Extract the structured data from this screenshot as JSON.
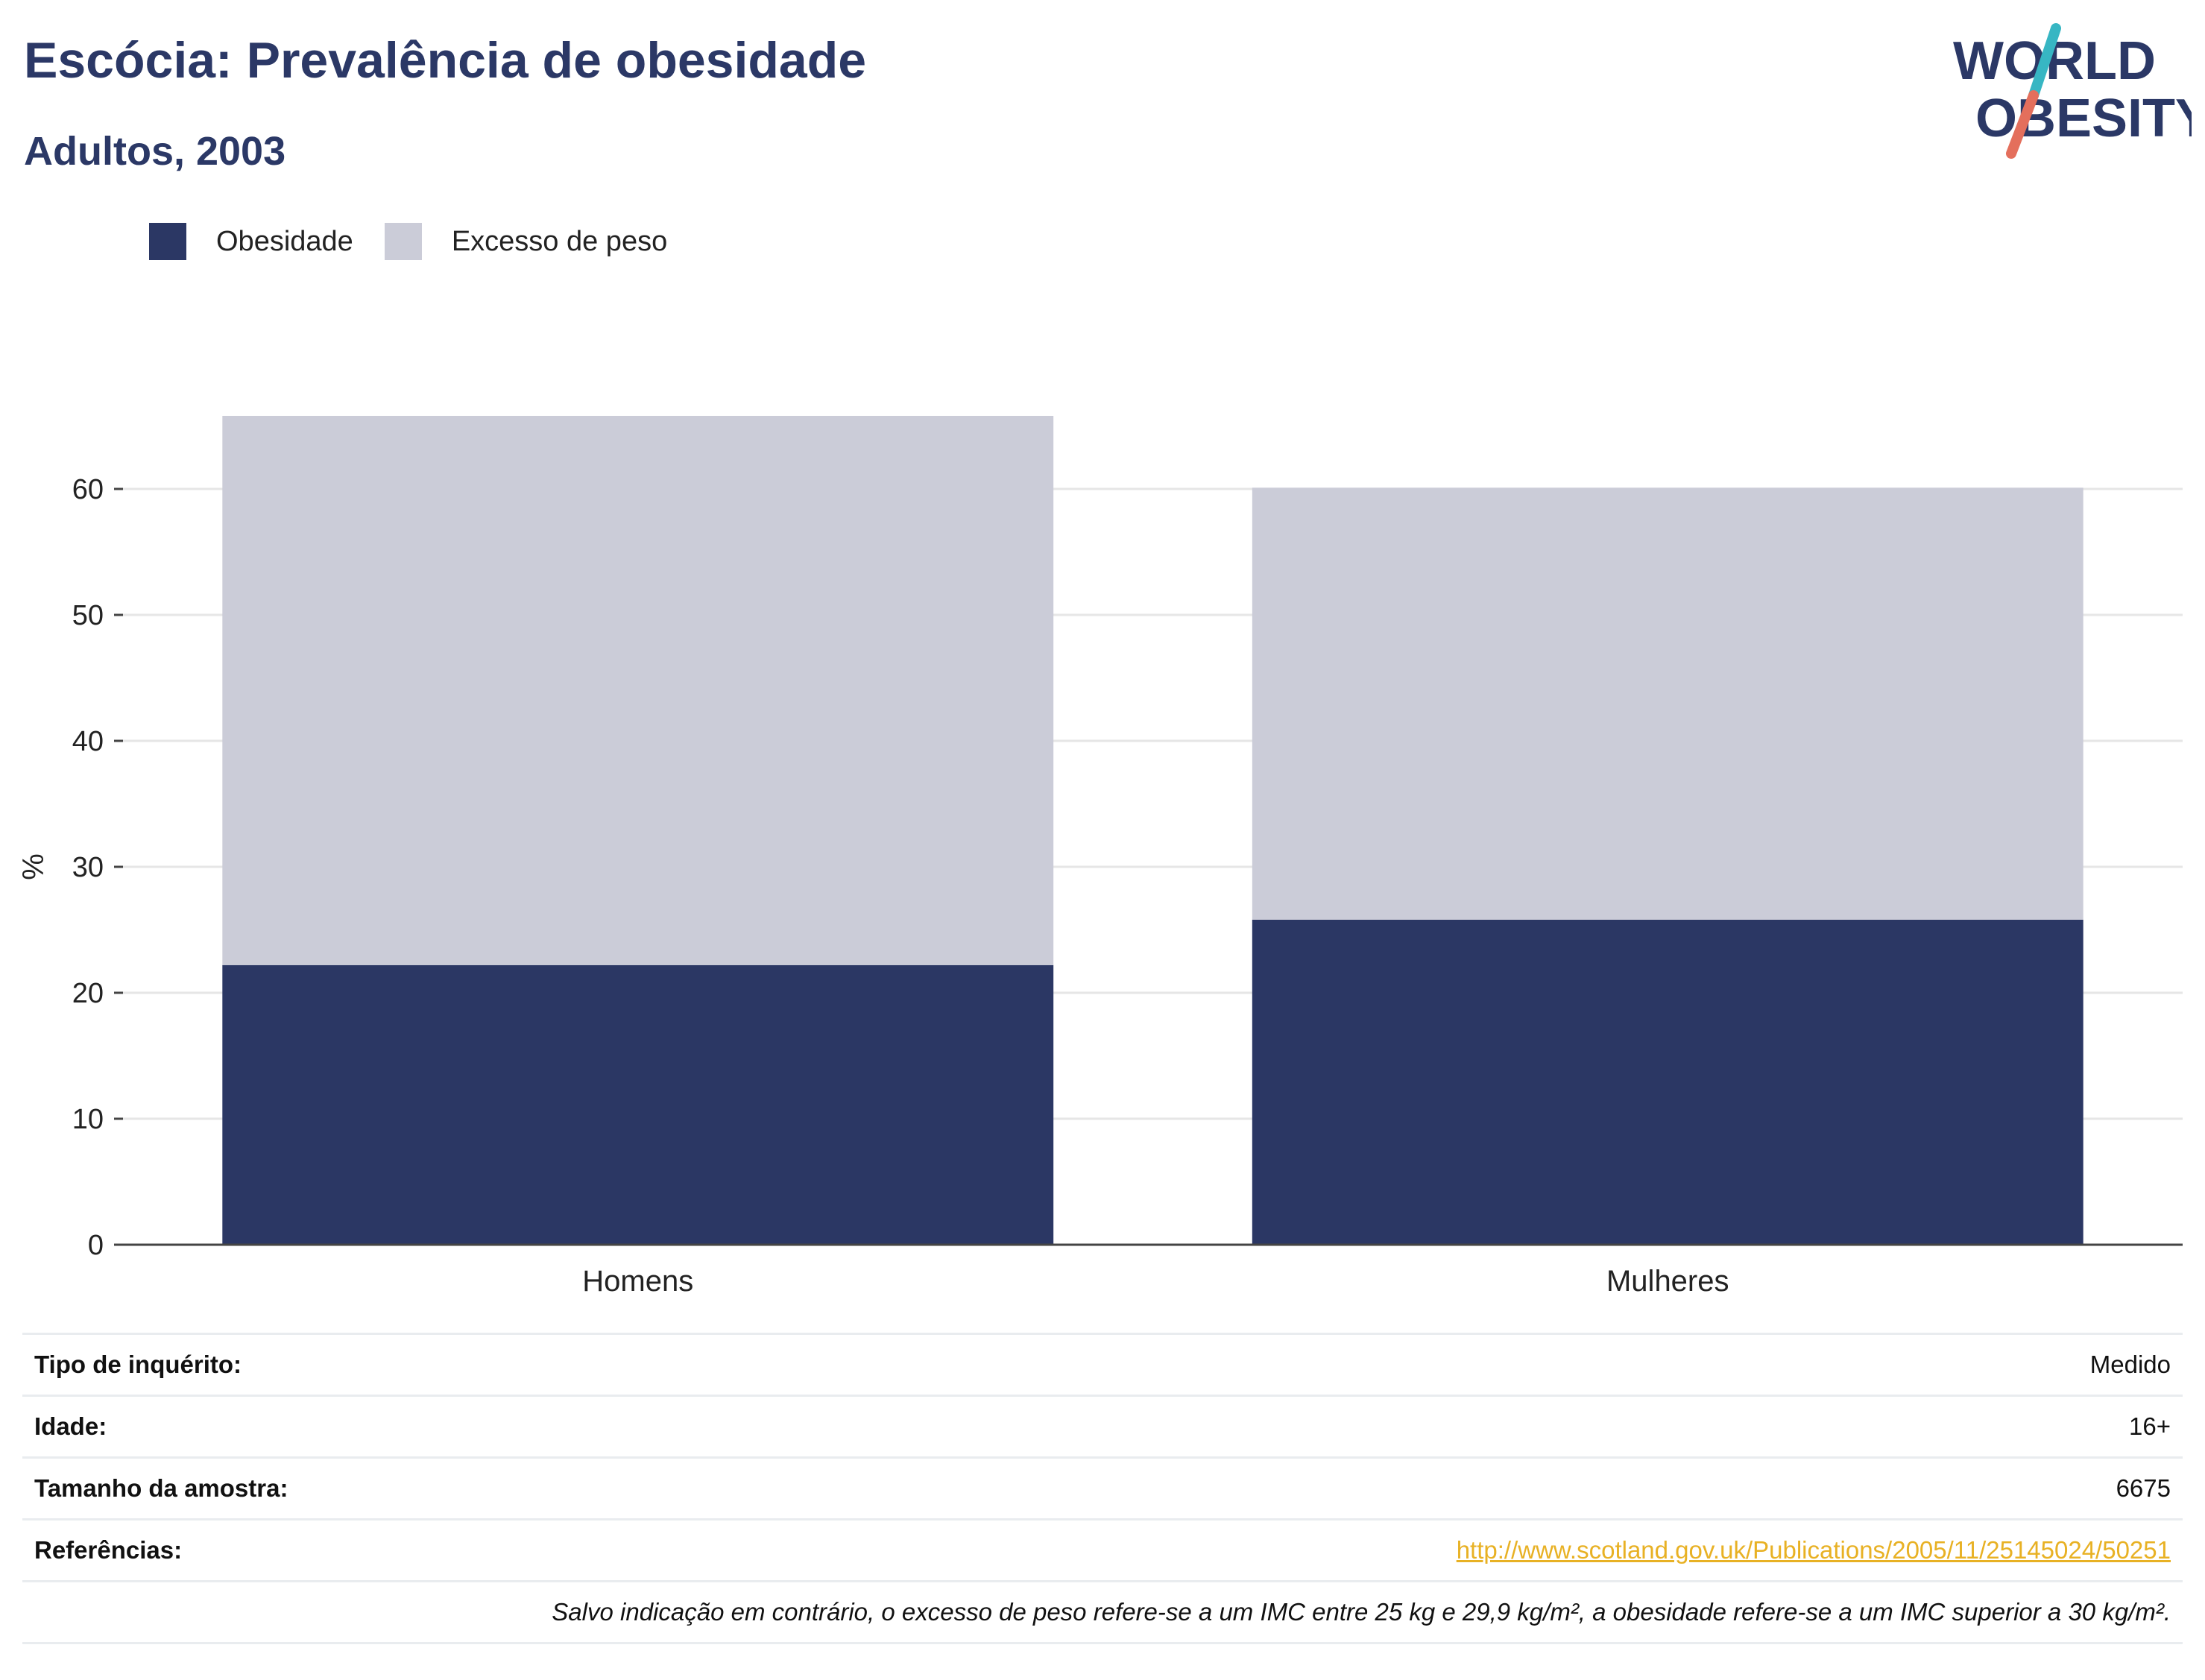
{
  "header": {
    "title": "Escócia: Prevalência de obesidade",
    "subtitle": "Adultos, 2003"
  },
  "logo": {
    "line1": "WORLD",
    "line2": "OBESITY",
    "colors": {
      "text": "#2b3866",
      "slash_top": "#37b6c3",
      "slash_bottom": "#e46f5c"
    }
  },
  "legend": [
    {
      "label": "Obesidade",
      "color": "#2b3764"
    },
    {
      "label": "Excesso de peso",
      "color": "#cbccd8"
    }
  ],
  "chart_data": {
    "type": "bar",
    "stacked": true,
    "categories": [
      "Homens",
      "Mulheres"
    ],
    "series": [
      {
        "name": "Obesidade",
        "values": [
          22.2,
          25.8
        ],
        "color": "#2b3764"
      },
      {
        "name": "Excesso de peso",
        "values": [
          43.6,
          34.3
        ],
        "color": "#cbccd8"
      }
    ],
    "ylabel": "%",
    "ylim": [
      0,
      70
    ],
    "yticks": [
      0,
      10,
      20,
      30,
      40,
      50,
      60
    ],
    "grid": true,
    "legend_position": "top-left"
  },
  "info": [
    {
      "key": "Tipo de inquérito:",
      "value": "Medido"
    },
    {
      "key": "Idade:",
      "value": "16+"
    },
    {
      "key": "Tamanho da amostra:",
      "value": "6675"
    },
    {
      "key": "Referências:",
      "value": "http://www.scotland.gov.uk/Publications/2005/11/25145024/50251"
    }
  ],
  "note": "Salvo indicação em contrário, o excesso de peso refere-se a um IMC entre 25 kg e 29,9 kg/m², a obesidade refere-se a um IMC superior a 30 kg/m²."
}
